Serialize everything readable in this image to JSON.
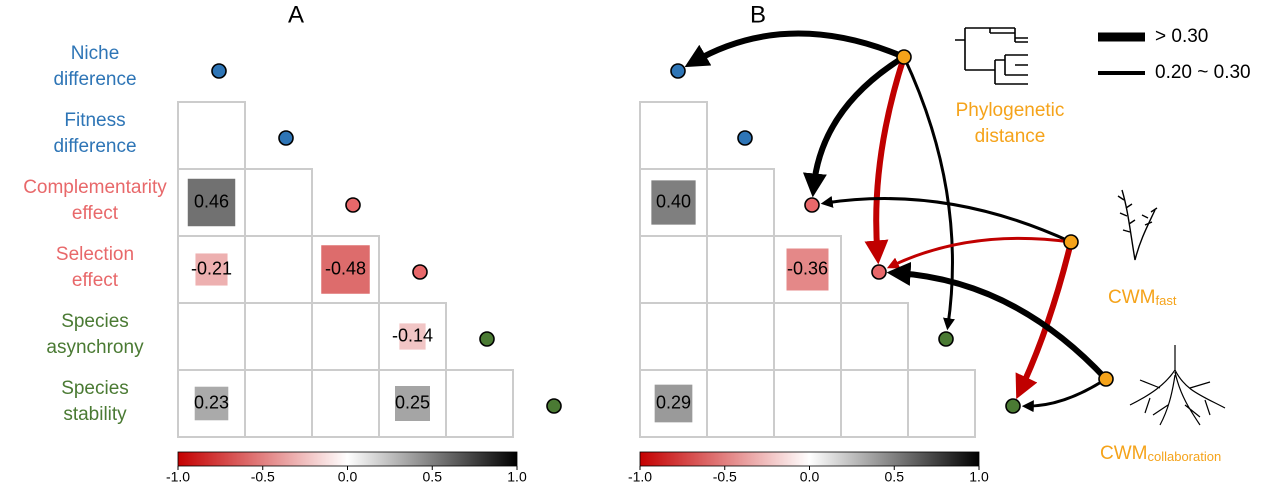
{
  "chart_data": [
    {
      "type": "correlation-matrix",
      "title": "A",
      "variables": [
        {
          "name": "Niche difference",
          "color": "#2e75b6"
        },
        {
          "name": "Fitness difference",
          "color": "#2e75b6"
        },
        {
          "name": "Complementarity effect",
          "color": "#e8686a"
        },
        {
          "name": "Selection effect",
          "color": "#e8686a"
        },
        {
          "name": "Species asynchrony",
          "color": "#4a7a33"
        },
        {
          "name": "Species stability",
          "color": "#4a7a33"
        }
      ],
      "values": [
        [],
        [
          null
        ],
        [
          0.46,
          null
        ],
        [
          -0.21,
          null,
          -0.48
        ],
        [
          null,
          null,
          null,
          -0.14
        ],
        [
          0.23,
          null,
          null,
          0.25,
          null
        ]
      ],
      "colorbar_lim": [
        -1,
        1
      ],
      "colorbar_ticks": [
        {
          "value": -1,
          "label": "-1.0"
        },
        -0.5,
        {
          "value": 0,
          "label": "0.0"
        },
        0.5,
        {
          "value": 1,
          "label": "1.0"
        }
      ]
    },
    {
      "type": "correlation-matrix",
      "title": "B",
      "values": [
        [],
        [
          null
        ],
        [
          0.4,
          null
        ],
        [
          null,
          null,
          -0.36
        ],
        [
          null,
          null,
          null,
          null
        ],
        [
          0.29,
          null,
          null,
          null,
          null
        ]
      ],
      "value_labels": [
        [],
        [
          null
        ],
        [
          "0.40",
          null
        ],
        [
          null,
          null,
          null
        ],
        [
          null,
          null,
          null,
          null
        ],
        [
          null,
          null,
          null,
          null,
          null
        ]
      ],
      "colorbar_lim": [
        -1,
        1
      ],
      "colorbar_ticks": [
        {
          "value": -1,
          "label": "-1.0"
        },
        -0.5,
        {
          "value": 0,
          "label": "0.0"
        },
        0.5,
        {
          "value": 1,
          "label": "1.0"
        }
      ],
      "legend": [
        {
          "name": "> 0.30"
        },
        {
          "name": "0.20 ~ 0.30"
        }
      ],
      "drivers": [
        {
          "name": "Phylogenetic distance",
          "color": "#f5a31a",
          "paths": [
            {
              "to": "Niche difference",
              "color": "#000000",
              "strength": "> 0.30"
            },
            {
              "to": "Complementarity effect",
              "color": "#000000",
              "strength": "> 0.30"
            },
            {
              "to": "Selection effect",
              "color": "#c00000",
              "strength": "> 0.30"
            },
            {
              "to": "Species asynchrony",
              "color": "#000000",
              "strength": "0.20 ~ 0.30"
            }
          ]
        },
        {
          "name": "CWM",
          "subscript": "fast",
          "color": "#f5a31a",
          "paths": [
            {
              "to": "Complementarity effect",
              "color": "#000000",
              "strength": "0.20 ~ 0.30"
            },
            {
              "to": "Selection effect",
              "color": "#c00000",
              "strength": "0.20 ~ 0.30"
            },
            {
              "to": "Species stability",
              "color": "#c00000",
              "strength": "> 0.30"
            }
          ]
        },
        {
          "name": "CWM",
          "subscript": "collaboration",
          "color": "#f5a31a",
          "paths": [
            {
              "to": "Selection effect",
              "color": "#000000",
              "strength": "> 0.30"
            },
            {
              "to": "Species stability",
              "color": "#000000",
              "strength": "0.20 ~ 0.30"
            }
          ]
        }
      ]
    }
  ]
}
